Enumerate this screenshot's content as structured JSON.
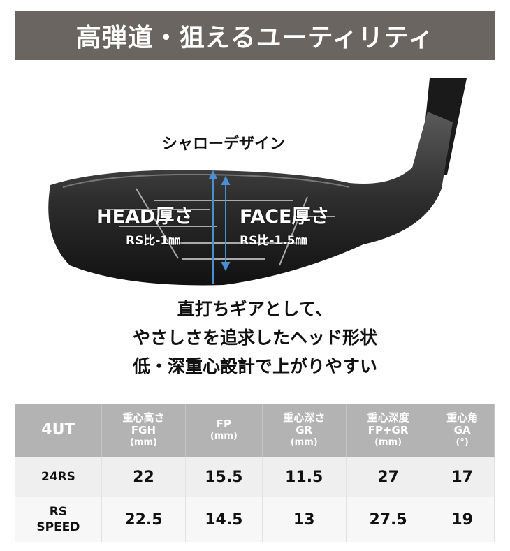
{
  "title": "高弾道・狙えるユーティリティ",
  "callout": "シャローデザイン",
  "labels": {
    "head": "HEAD厚さ",
    "head_sub": "RS比-1㎜",
    "face": "FACE厚さ",
    "face_sub": "RS比-1.5㎜"
  },
  "description": [
    "直打ちギアとして、",
    "やさしさを追求したヘッド形状",
    "低・深重心設計で上がりやすい"
  ],
  "colors": {
    "title_bg": "#6a6560",
    "arrow": "#4a8fd0",
    "header_bg": "#b3b3b3"
  },
  "table": {
    "model_header": "4UT",
    "headers": [
      {
        "jp": "重心高さ",
        "code": "FGH",
        "unit": "(mm)"
      },
      {
        "jp": "",
        "code": "FP",
        "unit": "(mm)"
      },
      {
        "jp": "重心深さ",
        "code": "GR",
        "unit": "(mm)"
      },
      {
        "jp": "重心深度",
        "code": "FP+GR",
        "unit": "(mm)"
      },
      {
        "jp": "重心角",
        "code": "GA",
        "unit": "(°)"
      }
    ],
    "rows": [
      {
        "model": "24RS",
        "values": [
          "22",
          "15.5",
          "11.5",
          "27",
          "17"
        ]
      },
      {
        "model": "RS\nSPEED",
        "model_l1": "RS",
        "model_l2": "SPEED",
        "values": [
          "22.5",
          "14.5",
          "13",
          "27.5",
          "19"
        ]
      }
    ]
  }
}
